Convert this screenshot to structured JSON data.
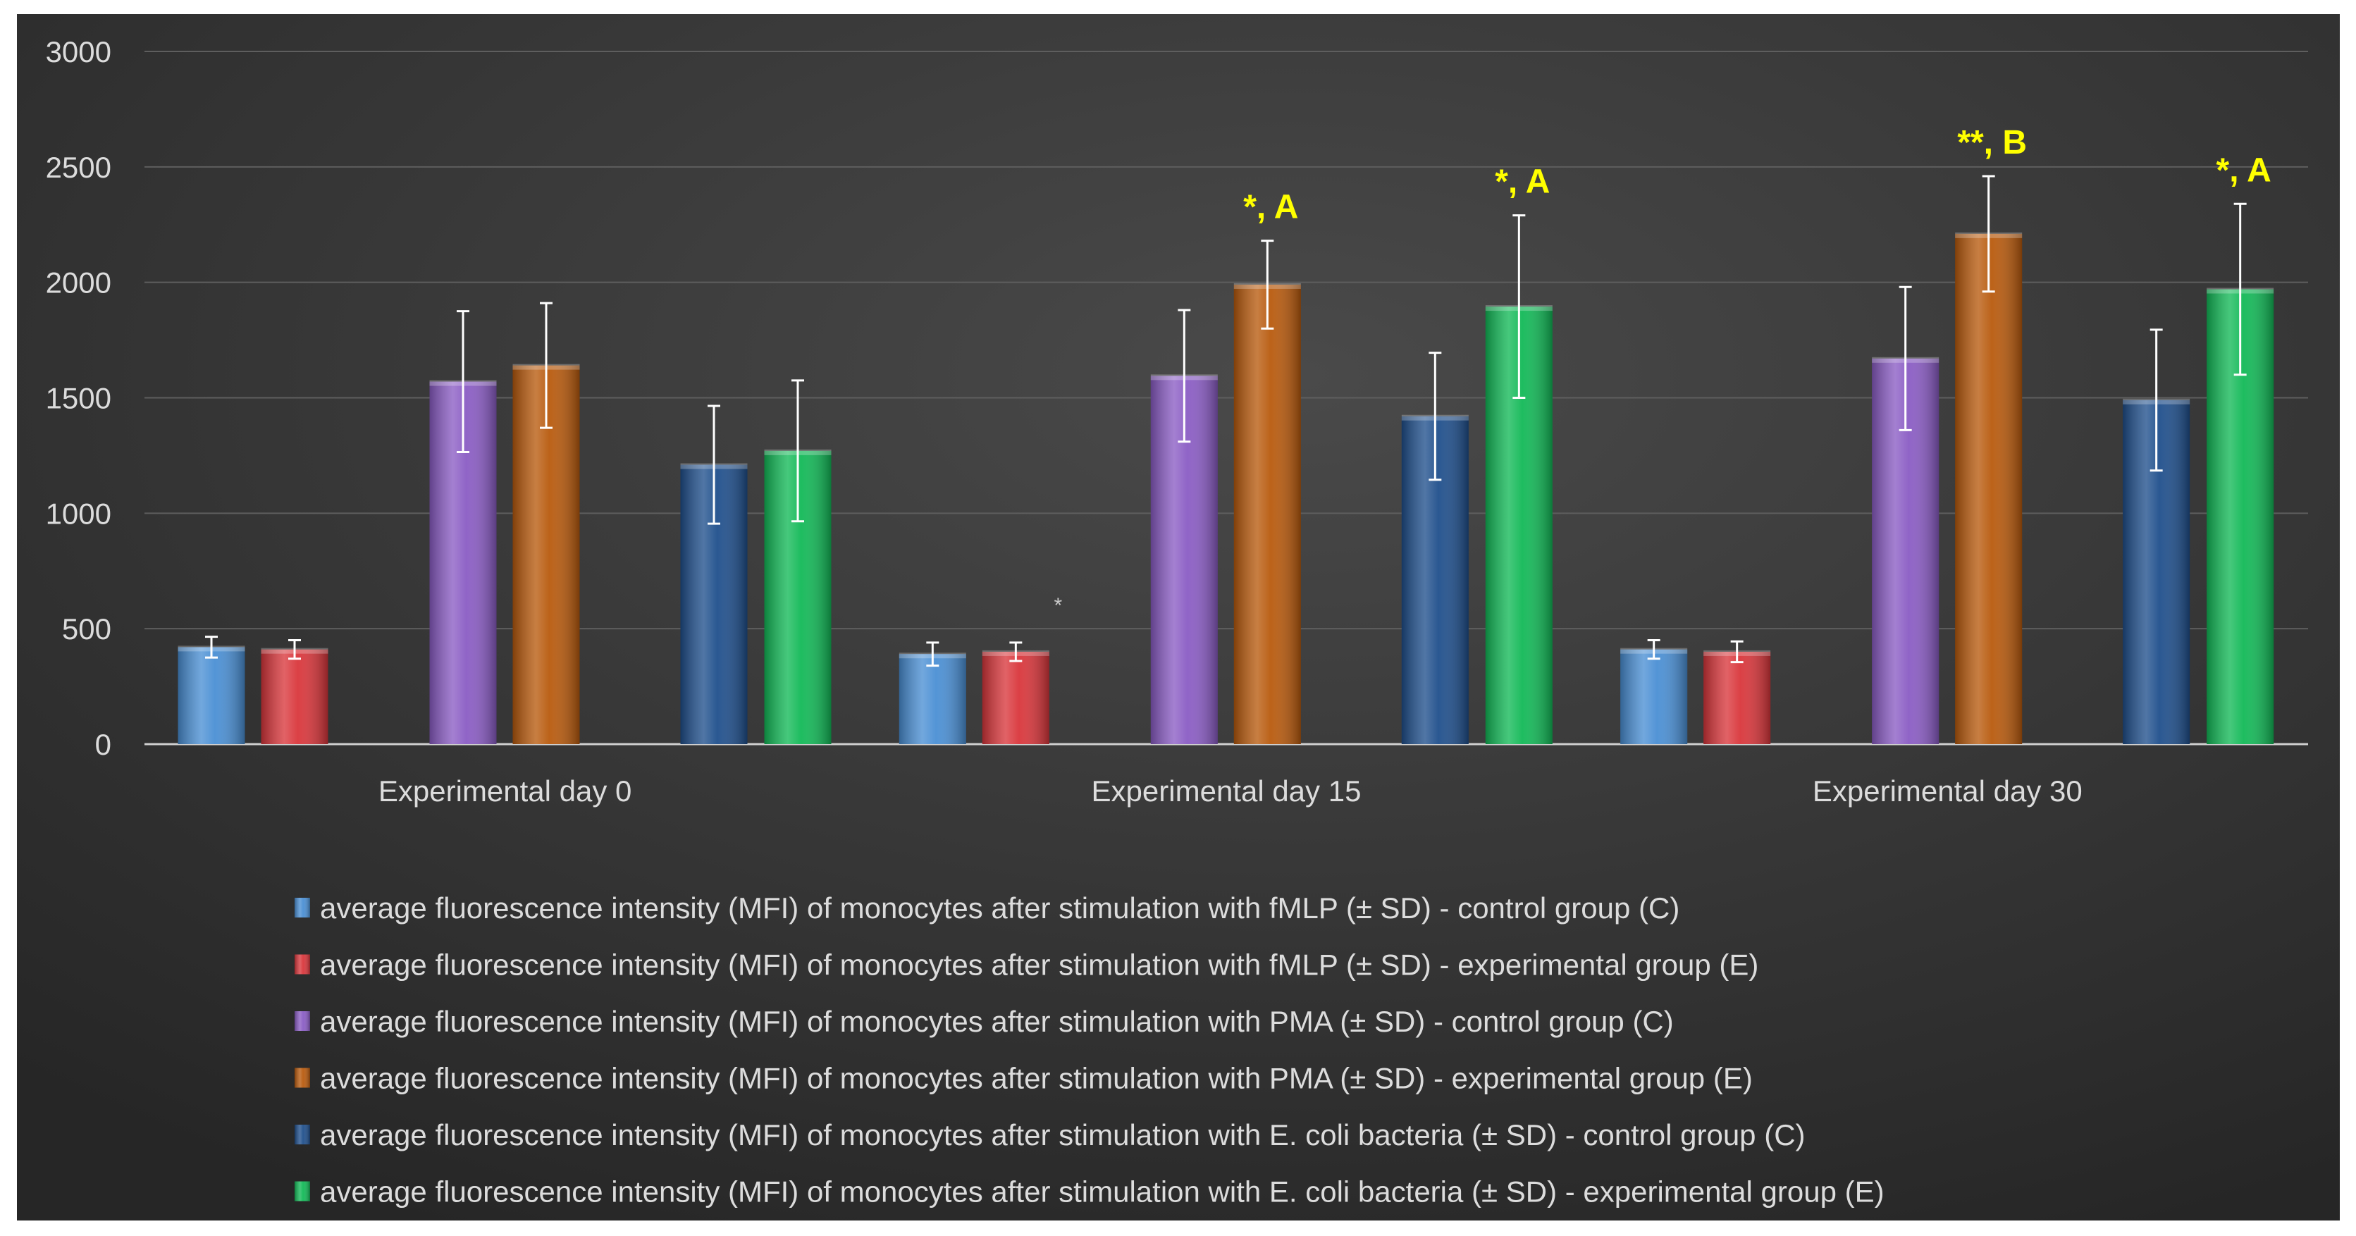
{
  "chart_data": {
    "type": "bar",
    "title": "",
    "xlabel": "",
    "ylabel": "",
    "ylim": [
      0,
      3000
    ],
    "y_ticks": [
      "0",
      "500",
      "1000",
      "1500",
      "2000",
      "2500",
      "3000"
    ],
    "gridlines": true,
    "legend_position": "bottom",
    "categories": [
      "Experimental day 0",
      "Experimental day 15",
      "Experimental day 30"
    ],
    "series": [
      {
        "name": "average fluorescence intensity (MFI) of monocytes after stimulation with fMLP (± SD) - control group (C)",
        "color": "#4a8fd4",
        "values": [
          420,
          390,
          410
        ],
        "errors": [
          45,
          50,
          40
        ]
      },
      {
        "name": "average fluorescence intensity (MFI) of monocytes after stimulation with fMLP (± SD) - experimental group (E)",
        "color": "#d9363b",
        "values": [
          410,
          400,
          400
        ],
        "errors": [
          40,
          40,
          45
        ]
      },
      {
        "name": "average fluorescence intensity (MFI) of monocytes after stimulation with PMA (± SD) - control group (C)",
        "color": "#8a5cc4",
        "values": [
          1570,
          1595,
          1670
        ],
        "errors": [
          305,
          285,
          310
        ]
      },
      {
        "name": "average fluorescence intensity (MFI) of monocytes after stimulation with PMA (± SD) - experimental group (E)",
        "color": "#b85a0d",
        "values": [
          1640,
          1990,
          2210
        ],
        "errors": [
          270,
          190,
          250
        ]
      },
      {
        "name": "average fluorescence intensity (MFI) of monocytes after stimulation with E. coli bacteria (± SD) - control group (C)",
        "color": "#1f4f8c",
        "values": [
          1210,
          1420,
          1490
        ],
        "errors": [
          255,
          275,
          305
        ]
      },
      {
        "name": "average fluorescence intensity (MFI) of monocytes after stimulation with E. coli bacteria (± SD) - experimental group (E)",
        "color": "#12b957",
        "values": [
          1270,
          1895,
          1970
        ],
        "errors": [
          305,
          395,
          370
        ]
      }
    ],
    "annotations": [
      {
        "text": "*",
        "category": 1,
        "series": 1,
        "color": "#c8c8c8",
        "size": "small"
      },
      {
        "text": "*, A",
        "category": 1,
        "series": 3,
        "color": "#ffff00",
        "size": "large"
      },
      {
        "text": "*, A",
        "category": 1,
        "series": 5,
        "color": "#ffff00",
        "size": "large"
      },
      {
        "text": "**, B",
        "category": 2,
        "series": 3,
        "color": "#ffff00",
        "size": "large"
      },
      {
        "text": "*, A",
        "category": 2,
        "series": 5,
        "color": "#ffff00",
        "size": "large"
      }
    ]
  }
}
